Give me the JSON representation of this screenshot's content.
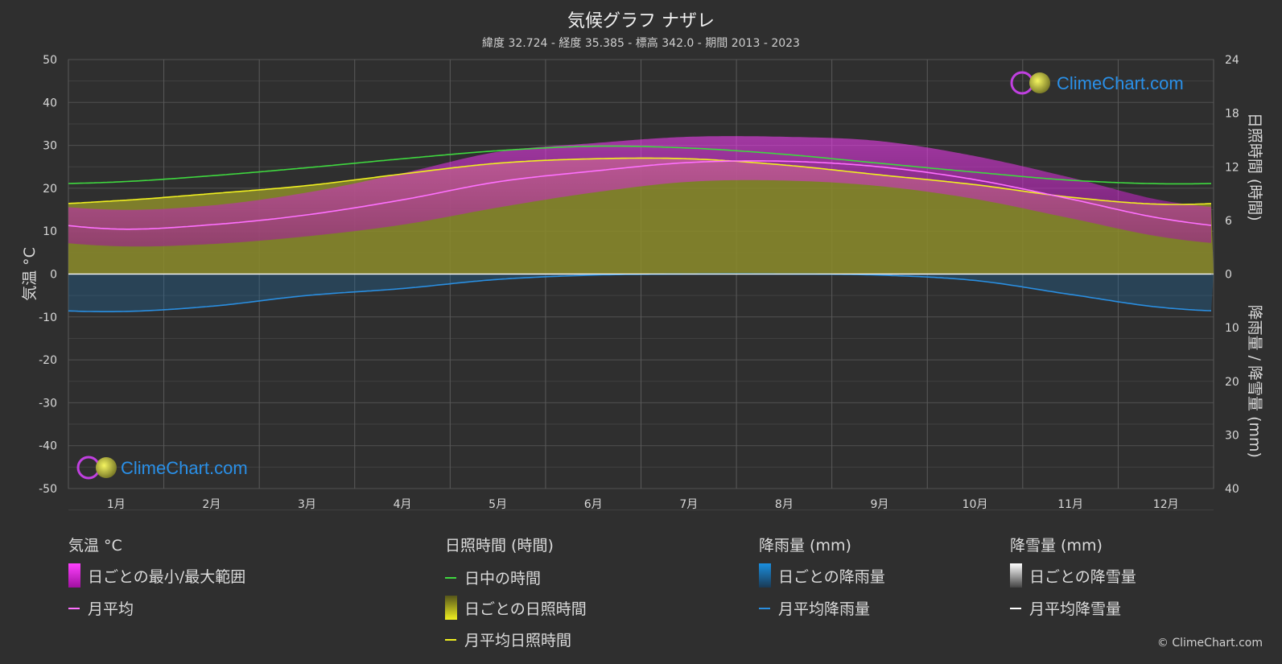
{
  "title": "気候グラフ ナザレ",
  "subtitle": "緯度 32.724 - 経度 35.385 - 標高 342.0 - 期間 2013 - 2023",
  "watermark": "ClimeChart.com",
  "copyright": "© ClimeChart.com",
  "colors": {
    "background": "#2f2f2f",
    "temp_range": "#d020d0",
    "temp_avg": "#ff70ff",
    "daylight": "#3fd83f",
    "sunshine_fill": "#8c8c2a",
    "sunshine_avg": "#f0f020",
    "rain_fill": "#1f6aa0",
    "rain_avg": "#2a8ee0",
    "snow_avg": "#ffffff",
    "brand": "#2a90e8"
  },
  "legend": {
    "temp": {
      "title": "気温 °C",
      "range": "日ごとの最小/最大範囲",
      "avg": "月平均"
    },
    "sun": {
      "title": "日照時間 (時間)",
      "daylight": "日中の時間",
      "daily": "日ごとの日照時間",
      "avg": "月平均日照時間"
    },
    "rain": {
      "title": "降雨量 (mm)",
      "daily": "日ごとの降雨量",
      "avg": "月平均降雨量"
    },
    "snow": {
      "title": "降雪量 (mm)",
      "daily": "日ごとの降雪量",
      "avg": "月平均降雪量"
    }
  },
  "chart_data": {
    "type": "line",
    "x_categories": [
      "1月",
      "2月",
      "3月",
      "4月",
      "5月",
      "6月",
      "7月",
      "8月",
      "9月",
      "10月",
      "11月",
      "12月"
    ],
    "y_left": {
      "label": "気温 °C",
      "ticks": [
        50,
        40,
        30,
        20,
        10,
        0,
        -10,
        -20,
        -30,
        -40,
        -50
      ],
      "range": [
        -50,
        50
      ]
    },
    "y_right_top": {
      "label": "日照時間 (時間)",
      "ticks": [
        24,
        18,
        12,
        6,
        0
      ],
      "range": [
        0,
        24
      ]
    },
    "y_right_bottom": {
      "label": "降雨量 / 降雪量 (mm)",
      "ticks": [
        0,
        10,
        20,
        30,
        40
      ],
      "range": [
        0,
        40
      ]
    },
    "series": [
      {
        "name": "日中の時間",
        "unit": "hours",
        "values": [
          10.3,
          11.0,
          11.9,
          12.9,
          13.8,
          14.3,
          14.1,
          13.4,
          12.4,
          11.4,
          10.5,
          10.1
        ]
      },
      {
        "name": "月平均日照時間",
        "unit": "hours",
        "values": [
          8.2,
          9.0,
          9.9,
          11.2,
          12.4,
          12.9,
          12.9,
          12.2,
          11.1,
          10.0,
          8.6,
          7.8
        ]
      },
      {
        "name": "月平均",
        "unit": "°C",
        "values": [
          10.5,
          11.5,
          13.8,
          17.3,
          21.5,
          24.0,
          26.0,
          26.3,
          25.0,
          22.0,
          17.5,
          12.8
        ]
      },
      {
        "name": "日ごとの最小/最大範囲 (min)",
        "unit": "°C",
        "values": [
          6.5,
          7.0,
          8.8,
          11.5,
          15.5,
          19.0,
          21.5,
          21.8,
          20.5,
          17.5,
          13.0,
          8.5
        ]
      },
      {
        "name": "日ごとの最小/最大範囲 (max)",
        "unit": "°C",
        "values": [
          15.0,
          16.0,
          19.0,
          23.5,
          28.5,
          30.5,
          32.0,
          32.0,
          31.0,
          27.5,
          22.5,
          17.0
        ]
      },
      {
        "name": "月平均降雨量",
        "unit": "mm",
        "values": [
          7.0,
          6.0,
          4.0,
          2.7,
          1.0,
          0.2,
          0.0,
          0.0,
          0.2,
          1.2,
          3.8,
          6.3
        ]
      },
      {
        "name": "月平均降雪量",
        "unit": "mm",
        "values": [
          0,
          0,
          0,
          0,
          0,
          0,
          0,
          0,
          0,
          0,
          0,
          0
        ]
      }
    ]
  }
}
